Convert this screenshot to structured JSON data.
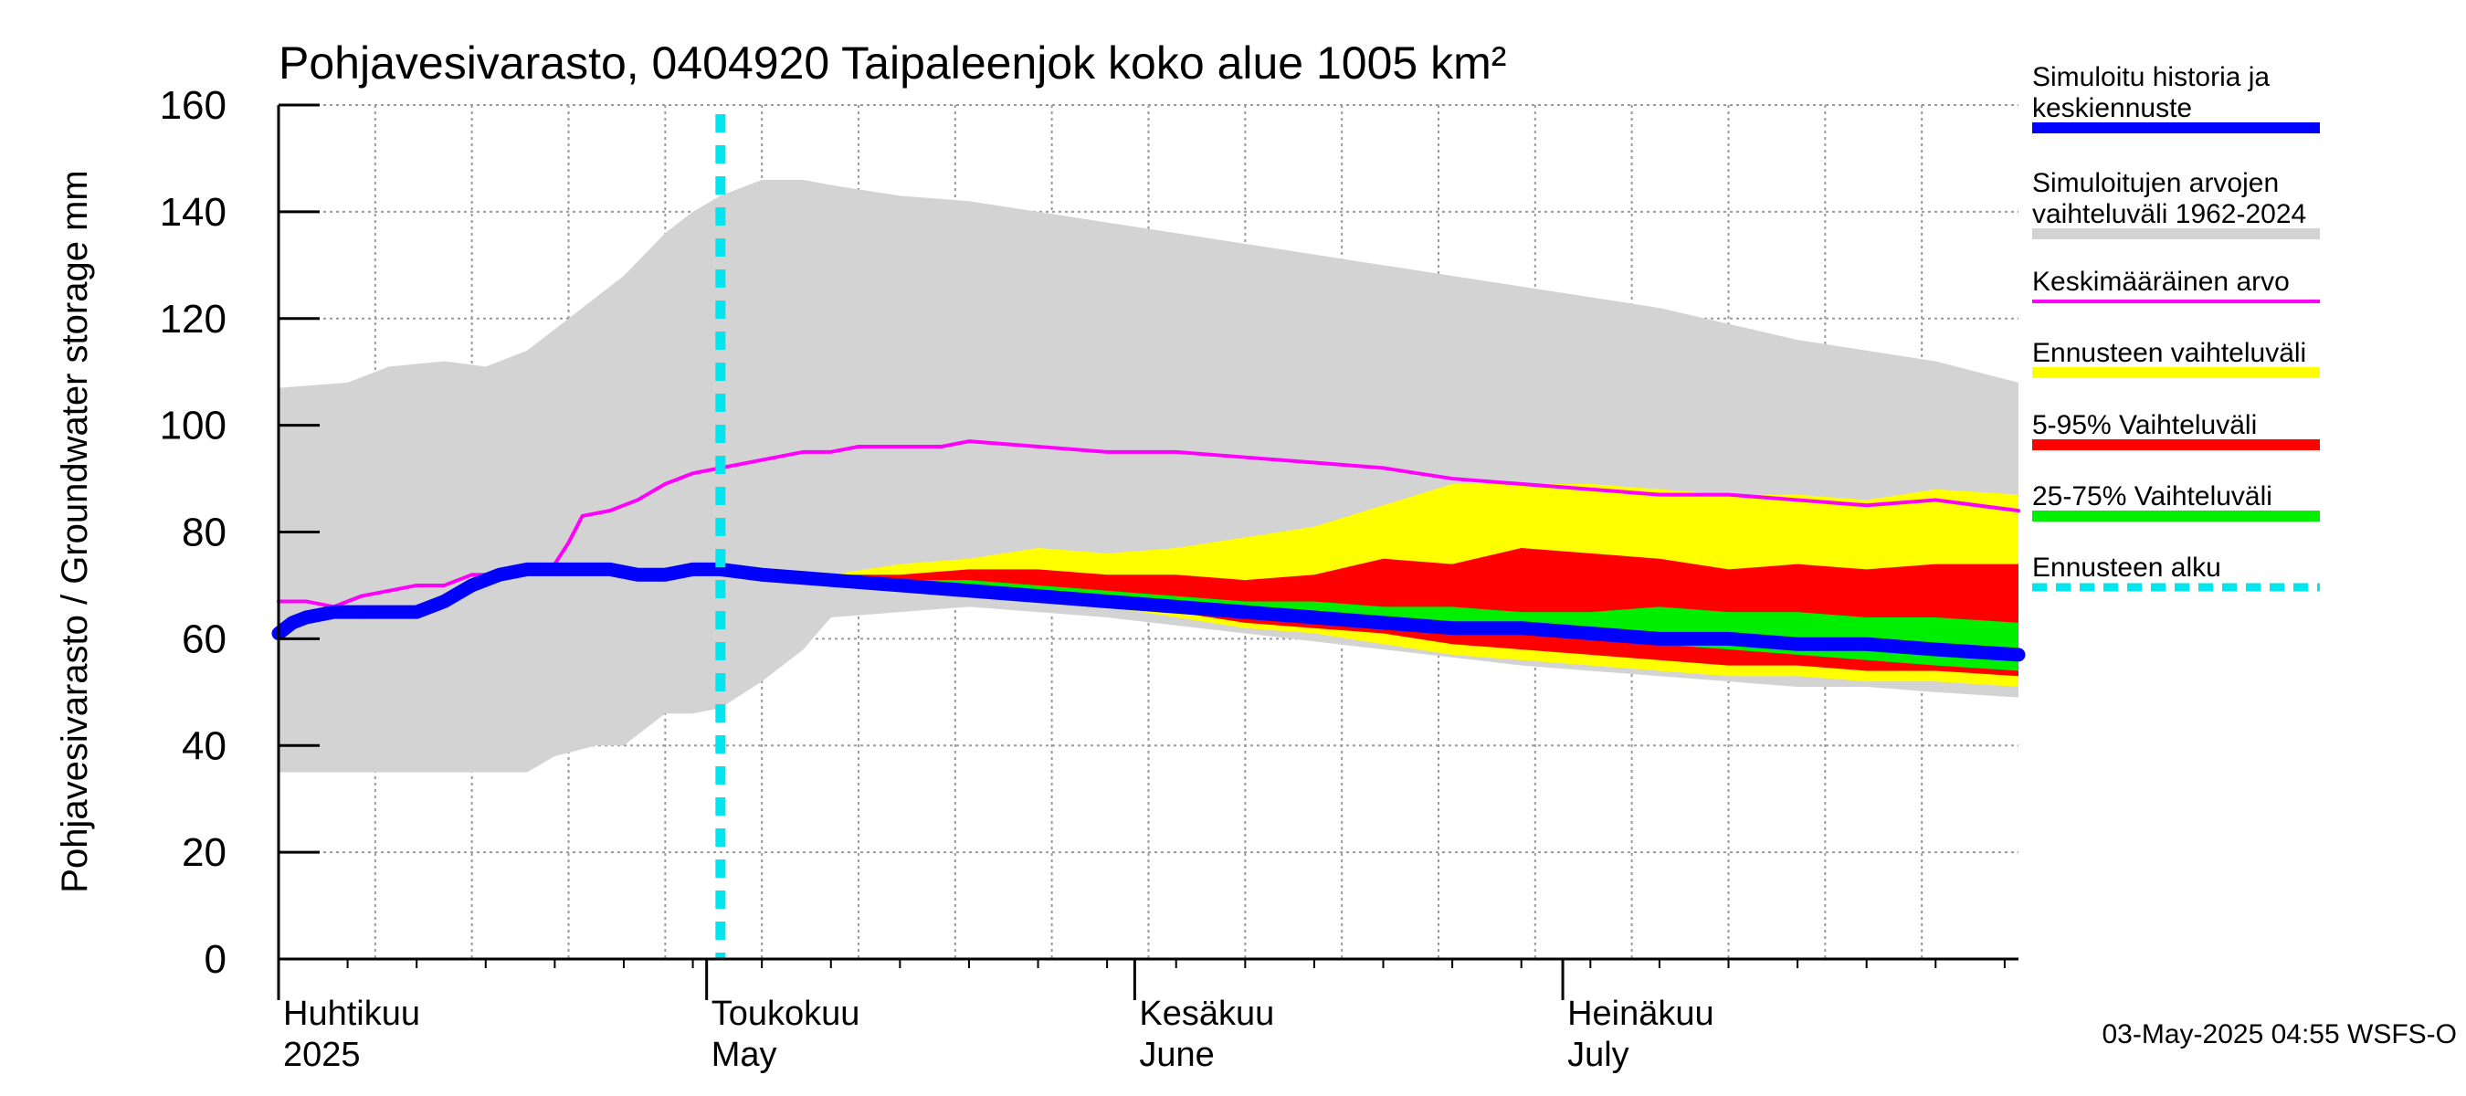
{
  "chart_data": {
    "type": "area",
    "title": "Pohjavesivarasto, 0404920 Taipaleenjok koko alue 1005 km²",
    "ylabel": "Pohjavesivarasto / Groundwater storage   mm",
    "ylim": [
      0,
      160
    ],
    "yticks": [
      0,
      20,
      40,
      60,
      80,
      100,
      120,
      140,
      160
    ],
    "x_range_days": [
      0,
      126
    ],
    "x_unit": "days since 2025-03-30",
    "forecast_start_day": 32,
    "month_labels": [
      {
        "day": 0,
        "fi": "Huhtikuu",
        "en": "2025"
      },
      {
        "day": 31,
        "fi": "Toukokuu",
        "en": "May"
      },
      {
        "day": 62,
        "fi": "Kesäkuu",
        "en": "June"
      },
      {
        "day": 93,
        "fi": "Heinäkuu",
        "en": "July"
      }
    ],
    "series": [
      {
        "name": "Simuloitujen arvojen vaihteluväli 1962-2024",
        "kind": "band",
        "color": "#d3d3d3",
        "x": [
          0,
          5,
          8,
          12,
          15,
          18,
          20,
          23,
          25,
          28,
          30,
          32,
          35,
          38,
          40,
          45,
          50,
          55,
          60,
          70,
          80,
          90,
          95,
          100,
          105,
          110,
          115,
          120,
          126
        ],
        "upper": [
          107,
          108,
          111,
          112,
          111,
          114,
          118,
          124,
          128,
          136,
          140,
          143,
          146,
          146,
          145,
          143,
          142,
          140,
          138,
          134,
          130,
          126,
          124,
          122,
          119,
          116,
          114,
          112,
          108
        ],
        "lower": [
          35,
          35,
          35,
          35,
          35,
          35,
          38,
          40,
          40,
          46,
          46,
          47,
          52,
          58,
          64,
          65,
          66,
          65,
          64,
          61,
          58,
          55,
          54,
          53,
          52,
          51,
          51,
          50,
          49
        ]
      },
      {
        "name": "Ennusteen vaihteluväli",
        "kind": "band",
        "color": "#ffff00",
        "x": [
          40,
          45,
          50,
          55,
          60,
          65,
          70,
          75,
          80,
          85,
          90,
          95,
          100,
          105,
          110,
          115,
          120,
          126
        ],
        "upper": [
          72,
          74,
          75,
          77,
          76,
          77,
          79,
          81,
          85,
          89,
          89,
          89,
          88,
          87,
          87,
          86,
          88,
          87
        ],
        "lower": [
          72,
          71,
          70,
          68,
          66,
          64,
          62,
          61,
          59,
          57,
          56,
          55,
          54,
          53,
          53,
          52,
          52,
          51
        ]
      },
      {
        "name": "5-95% Vaihteluväli",
        "kind": "band",
        "color": "#ff0000",
        "x": [
          40,
          45,
          50,
          55,
          60,
          65,
          70,
          75,
          80,
          85,
          90,
          95,
          100,
          105,
          110,
          115,
          120,
          126
        ],
        "upper": [
          72,
          72,
          73,
          73,
          72,
          72,
          71,
          72,
          75,
          74,
          77,
          76,
          75,
          73,
          74,
          73,
          74,
          74
        ],
        "lower": [
          72,
          71,
          70,
          68,
          66,
          65,
          63,
          62,
          61,
          59,
          58,
          57,
          56,
          55,
          55,
          54,
          54,
          53
        ]
      },
      {
        "name": "25-75% Vaihteluväli",
        "kind": "band",
        "color": "#00ee00",
        "x": [
          40,
          45,
          50,
          55,
          60,
          65,
          70,
          75,
          80,
          85,
          90,
          95,
          100,
          105,
          110,
          115,
          120,
          126
        ],
        "upper": [
          72,
          71,
          71,
          70,
          69,
          68,
          67,
          67,
          66,
          66,
          65,
          65,
          66,
          65,
          65,
          64,
          64,
          63
        ],
        "lower": [
          72,
          71,
          70,
          69,
          67,
          66,
          65,
          64,
          63,
          62,
          61,
          60,
          59,
          58,
          57,
          56,
          55,
          54
        ]
      },
      {
        "name": "Keskimääräinen arvo",
        "kind": "line",
        "color": "#ff00ff",
        "width": 4,
        "x": [
          0,
          2,
          4,
          6,
          8,
          10,
          12,
          14,
          16,
          18,
          20,
          21,
          22,
          24,
          26,
          28,
          30,
          32,
          34,
          36,
          38,
          40,
          42,
          44,
          46,
          48,
          50,
          55,
          60,
          65,
          70,
          75,
          80,
          85,
          90,
          95,
          100,
          105,
          110,
          115,
          120,
          126
        ],
        "y": [
          67,
          67,
          66,
          68,
          69,
          70,
          70,
          72,
          72,
          73,
          74,
          78,
          83,
          84,
          86,
          89,
          91,
          92,
          93,
          94,
          95,
          95,
          96,
          96,
          96,
          96,
          97,
          96,
          95,
          95,
          94,
          93,
          92,
          90,
          89,
          88,
          87,
          87,
          86,
          85,
          86,
          84
        ]
      },
      {
        "name": "Simuloitu historia ja keskiennuste",
        "kind": "line",
        "color": "#0000ff",
        "width": 15,
        "x": [
          0,
          1,
          2,
          4,
          6,
          8,
          10,
          12,
          14,
          16,
          18,
          20,
          22,
          24,
          26,
          28,
          30,
          32,
          35,
          40,
          45,
          50,
          55,
          60,
          65,
          70,
          75,
          80,
          85,
          90,
          95,
          100,
          105,
          110,
          115,
          120,
          126
        ],
        "y": [
          61,
          63,
          64,
          65,
          65,
          65,
          65,
          67,
          70,
          72,
          73,
          73,
          73,
          73,
          72,
          72,
          73,
          73,
          72,
          71,
          70,
          69,
          68,
          67,
          66,
          65,
          64,
          63,
          62,
          62,
          61,
          60,
          60,
          59,
          59,
          58,
          57
        ]
      }
    ],
    "legend": [
      {
        "label": "Simuloitu historia ja keskiennuste",
        "color": "#0000ff",
        "swatch": "thick"
      },
      {
        "label": "Simuloitujen arvojen vaihteluväli 1962-2024",
        "color": "#d3d3d3",
        "swatch": "thick"
      },
      {
        "label": "Keskimääräinen arvo",
        "color": "#ff00ff",
        "swatch": "thin"
      },
      {
        "label": "Ennusteen vaihteluväli",
        "color": "#ffff00",
        "swatch": "thick"
      },
      {
        "label": "5-95% Vaihteluväli",
        "color": "#ff0000",
        "swatch": "thick"
      },
      {
        "label": "25-75% Vaihteluväli",
        "color": "#00ee00",
        "swatch": "thick"
      },
      {
        "label": "Ennusteen alku",
        "color": "#00e5ee",
        "swatch": "dashed"
      }
    ],
    "footer": "03-May-2025 04:55 WSFS-O"
  }
}
